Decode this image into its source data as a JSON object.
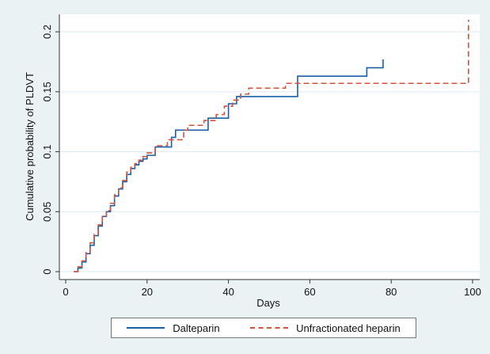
{
  "chart_data": {
    "type": "line",
    "step": true,
    "xlabel": "Days",
    "ylabel": "Cumulative probability of PLDVT",
    "xlim": [
      0,
      100
    ],
    "ylim": [
      0,
      0.21
    ],
    "x_ticks": [
      "0",
      "20",
      "40",
      "60",
      "80",
      "100"
    ],
    "y_ticks": [
      "0",
      "0.05",
      "0.1",
      "0.15",
      "0.2"
    ],
    "grid": "horizontal",
    "legend_position": "bottom",
    "series": [
      {
        "name": "Dalteparin",
        "color": "#1a5fa6",
        "dash": "solid",
        "points": [
          [
            2,
            0
          ],
          [
            3,
            0.003
          ],
          [
            4,
            0.008
          ],
          [
            5,
            0.015
          ],
          [
            6,
            0.022
          ],
          [
            7,
            0.03
          ],
          [
            8,
            0.038
          ],
          [
            9,
            0.046
          ],
          [
            10,
            0.05
          ],
          [
            11,
            0.055
          ],
          [
            12,
            0.063
          ],
          [
            13,
            0.069
          ],
          [
            14,
            0.075
          ],
          [
            15,
            0.081
          ],
          [
            16,
            0.086
          ],
          [
            17,
            0.089
          ],
          [
            18,
            0.092
          ],
          [
            19,
            0.094
          ],
          [
            20,
            0.097
          ],
          [
            22,
            0.104
          ],
          [
            26,
            0.112
          ],
          [
            27,
            0.118
          ],
          [
            35,
            0.128
          ],
          [
            40,
            0.14
          ],
          [
            42,
            0.146
          ],
          [
            57,
            0.163
          ],
          [
            74,
            0.17
          ],
          [
            78,
            0.177
          ]
        ]
      },
      {
        "name": "Unfractionated heparin",
        "color": "#d2533f",
        "dash": "dashed",
        "points": [
          [
            2,
            0
          ],
          [
            3,
            0.004
          ],
          [
            4,
            0.009
          ],
          [
            5,
            0.016
          ],
          [
            6,
            0.024
          ],
          [
            7,
            0.031
          ],
          [
            8,
            0.039
          ],
          [
            9,
            0.046
          ],
          [
            10,
            0.051
          ],
          [
            11,
            0.057
          ],
          [
            12,
            0.064
          ],
          [
            13,
            0.07
          ],
          [
            14,
            0.076
          ],
          [
            15,
            0.083
          ],
          [
            16,
            0.087
          ],
          [
            17,
            0.09
          ],
          [
            18,
            0.093
          ],
          [
            19,
            0.096
          ],
          [
            20,
            0.099
          ],
          [
            22,
            0.105
          ],
          [
            25,
            0.11
          ],
          [
            29,
            0.118
          ],
          [
            30,
            0.122
          ],
          [
            34,
            0.126
          ],
          [
            37,
            0.131
          ],
          [
            39,
            0.138
          ],
          [
            41,
            0.143
          ],
          [
            43,
            0.148
          ],
          [
            45,
            0.153
          ],
          [
            54,
            0.157
          ],
          [
            99,
            0.21
          ]
        ]
      }
    ]
  }
}
